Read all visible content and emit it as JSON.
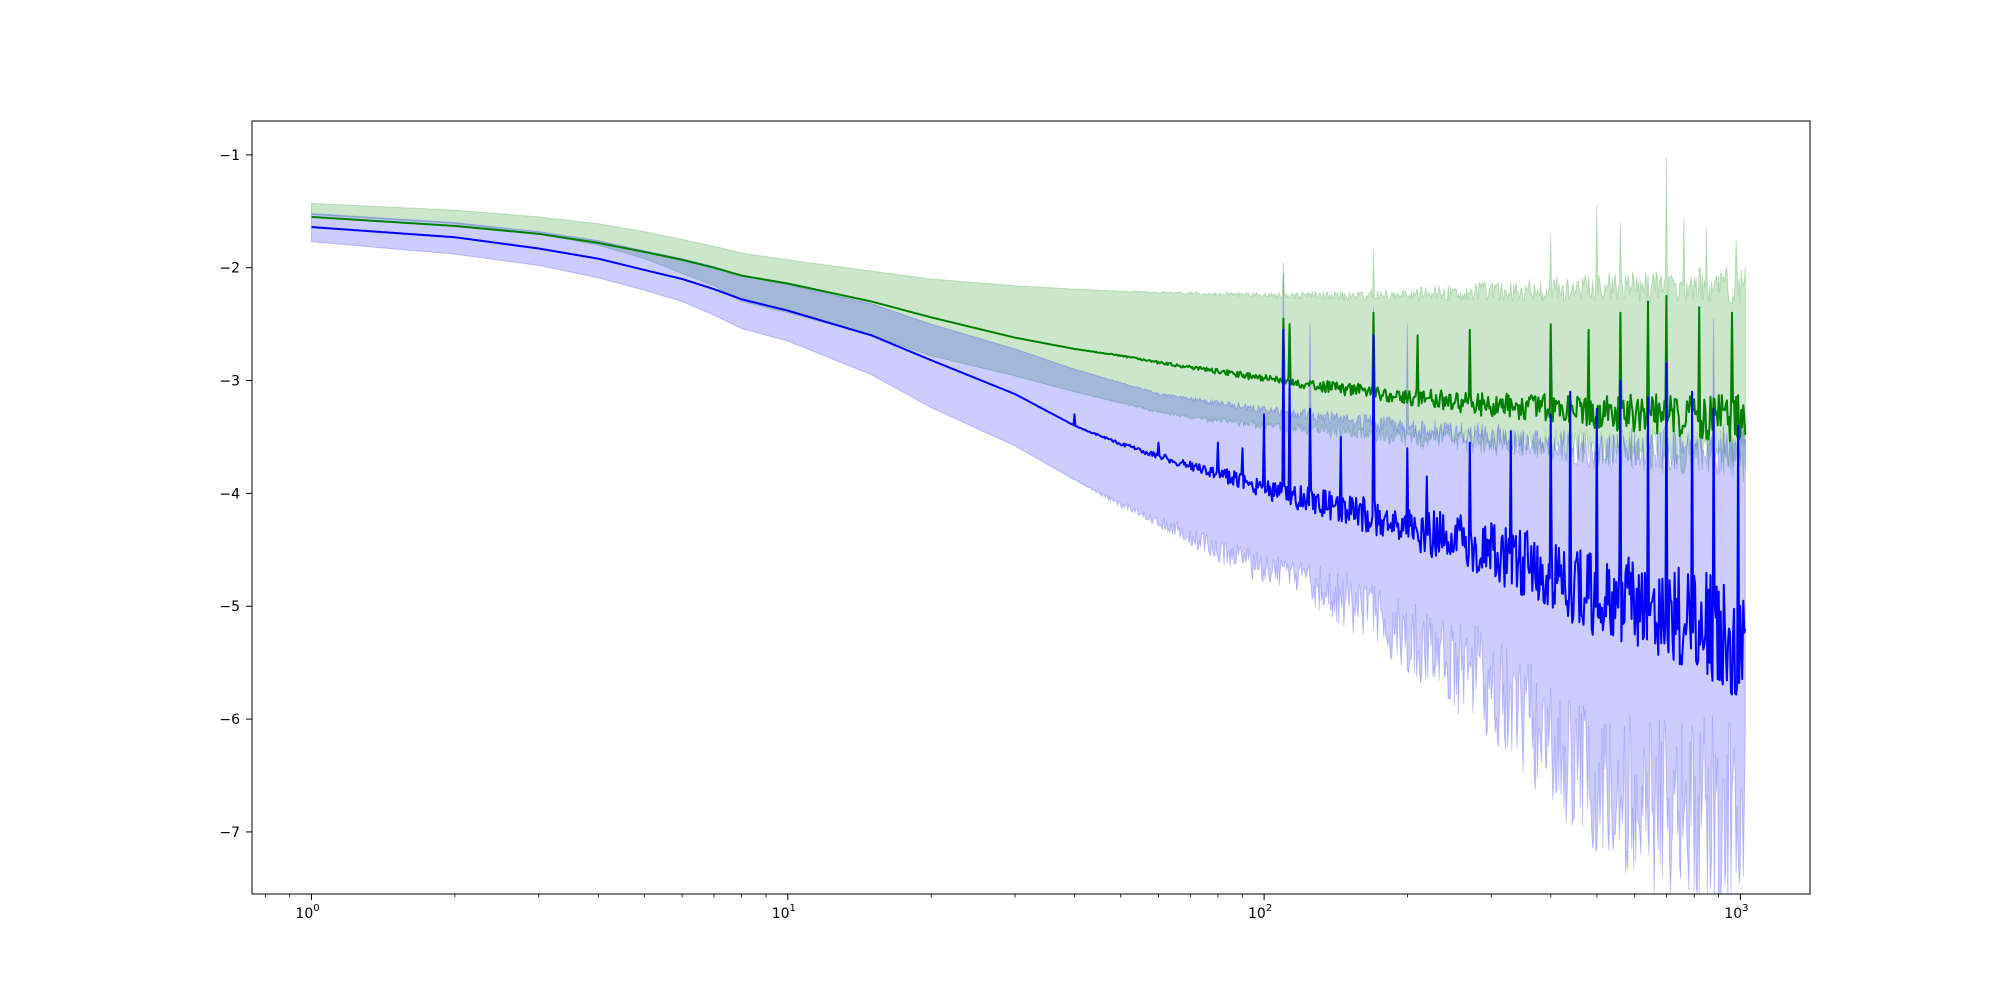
{
  "chart_data": {
    "type": "line",
    "title": "",
    "xlabel": "",
    "ylabel": "",
    "xscale": "log",
    "xlim": [
      0.75,
      1400
    ],
    "ylim": [
      -7.55,
      -0.7
    ],
    "grid": false,
    "legend": "none",
    "x_ticks": [
      {
        "base": "10",
        "exp": "0",
        "value": 1
      },
      {
        "base": "10",
        "exp": "1",
        "value": 10
      },
      {
        "base": "10",
        "exp": "2",
        "value": 100
      },
      {
        "base": "10",
        "exp": "3",
        "value": 1000
      }
    ],
    "y_ticks": [
      {
        "label": "−1",
        "value": -1
      },
      {
        "label": "−2",
        "value": -2
      },
      {
        "label": "−3",
        "value": -3
      },
      {
        "label": "−4",
        "value": -4
      },
      {
        "label": "−5",
        "value": -5
      },
      {
        "label": "−6",
        "value": -6
      },
      {
        "label": "−7",
        "value": -7
      }
    ],
    "series": [
      {
        "color": "#008000",
        "band_color": "#008000",
        "band_opacity": 0.2,
        "mean": {
          "x": [
            1,
            2,
            3,
            4,
            5,
            6,
            7,
            8,
            10,
            15,
            20,
            30,
            40,
            50,
            60,
            80,
            100,
            150,
            200,
            300,
            400,
            500,
            700,
            1024
          ],
          "y": [
            -1.55,
            -1.63,
            -1.7,
            -1.78,
            -1.86,
            -1.93,
            -2.0,
            -2.07,
            -2.14,
            -2.3,
            -2.44,
            -2.62,
            -2.72,
            -2.78,
            -2.84,
            -2.92,
            -2.98,
            -3.08,
            -3.14,
            -3.22,
            -3.25,
            -3.28,
            -3.3,
            -3.35
          ]
        },
        "upper": {
          "x": [
            1,
            2,
            3,
            4,
            5,
            6,
            7,
            8,
            10,
            15,
            20,
            30,
            40,
            50,
            60,
            80,
            100,
            150,
            200,
            300,
            400,
            500,
            700,
            1024
          ],
          "y": [
            -1.43,
            -1.49,
            -1.55,
            -1.61,
            -1.68,
            -1.75,
            -1.81,
            -1.87,
            -1.93,
            -2.03,
            -2.1,
            -2.16,
            -2.19,
            -2.21,
            -2.22,
            -2.23,
            -2.24,
            -2.25,
            -2.24,
            -2.21,
            -2.19,
            -2.17,
            -2.16,
            -2.15
          ]
        },
        "lower": {
          "x": [
            1,
            2,
            3,
            4,
            5,
            6,
            7,
            8,
            10,
            15,
            20,
            30,
            40,
            50,
            60,
            80,
            100,
            150,
            200,
            300,
            400,
            500,
            700,
            1024
          ],
          "y": [
            -1.53,
            -1.61,
            -1.7,
            -1.8,
            -1.92,
            -2.05,
            -2.16,
            -2.3,
            -2.4,
            -2.6,
            -2.78,
            -2.96,
            -3.1,
            -3.2,
            -3.28,
            -3.36,
            -3.4,
            -3.46,
            -3.5,
            -3.55,
            -3.58,
            -3.6,
            -3.62,
            -3.65
          ]
        },
        "spikes": [
          {
            "x": 110,
            "y": -2.45
          },
          {
            "x": 113,
            "y": -2.5
          },
          {
            "x": 170,
            "y": -2.4
          },
          {
            "x": 210,
            "y": -2.6
          },
          {
            "x": 270,
            "y": -2.55
          },
          {
            "x": 400,
            "y": -2.5
          },
          {
            "x": 480,
            "y": -2.55
          },
          {
            "x": 560,
            "y": -2.4
          },
          {
            "x": 640,
            "y": -2.3
          },
          {
            "x": 700,
            "y": -2.25
          },
          {
            "x": 820,
            "y": -2.35
          },
          {
            "x": 960,
            "y": -2.4
          }
        ],
        "upper_spikes": [
          {
            "x": 110,
            "y": -1.95
          },
          {
            "x": 170,
            "y": -1.85
          },
          {
            "x": 400,
            "y": -1.7
          },
          {
            "x": 500,
            "y": -1.45
          },
          {
            "x": 560,
            "y": -1.6
          },
          {
            "x": 700,
            "y": -1.02
          },
          {
            "x": 760,
            "y": -1.55
          },
          {
            "x": 850,
            "y": -1.65
          },
          {
            "x": 980,
            "y": -1.75
          }
        ]
      },
      {
        "color": "#0000ff",
        "band_color": "#0000ff",
        "band_opacity": 0.2,
        "mean": {
          "x": [
            1,
            2,
            3,
            4,
            5,
            6,
            7,
            8,
            10,
            15,
            20,
            30,
            40,
            50,
            60,
            80,
            100,
            150,
            200,
            300,
            400,
            500,
            700,
            1024
          ],
          "y": [
            -1.64,
            -1.73,
            -1.83,
            -1.92,
            -2.02,
            -2.1,
            -2.19,
            -2.28,
            -2.38,
            -2.6,
            -2.82,
            -3.12,
            -3.4,
            -3.56,
            -3.67,
            -3.82,
            -3.96,
            -4.15,
            -4.3,
            -4.5,
            -4.72,
            -4.9,
            -5.0,
            -5.3
          ]
        },
        "upper": {
          "x": [
            1,
            2,
            3,
            4,
            5,
            6,
            7,
            8,
            10,
            15,
            20,
            30,
            40,
            50,
            60,
            80,
            100,
            150,
            200,
            300,
            400,
            500,
            700,
            1024
          ],
          "y": [
            -1.52,
            -1.6,
            -1.68,
            -1.76,
            -1.85,
            -1.92,
            -1.99,
            -2.07,
            -2.15,
            -2.32,
            -2.5,
            -2.72,
            -2.9,
            -3.02,
            -3.12,
            -3.2,
            -3.26,
            -3.35,
            -3.42,
            -3.5,
            -3.56,
            -3.62,
            -3.6,
            -3.6
          ]
        },
        "lower": {
          "x": [
            1,
            2,
            3,
            4,
            5,
            6,
            7,
            8,
            10,
            15,
            20,
            30,
            40,
            50,
            60,
            80,
            100,
            150,
            200,
            300,
            400,
            500,
            700,
            1024
          ],
          "y": [
            -1.77,
            -1.88,
            -1.98,
            -2.09,
            -2.2,
            -2.3,
            -2.42,
            -2.54,
            -2.65,
            -2.95,
            -3.24,
            -3.58,
            -3.88,
            -4.1,
            -4.25,
            -4.5,
            -4.68,
            -4.95,
            -5.28,
            -5.7,
            -6.2,
            -6.6,
            -6.8,
            -6.95
          ]
        },
        "spikes": [
          {
            "x": 40,
            "y": -3.3
          },
          {
            "x": 60,
            "y": -3.55
          },
          {
            "x": 80,
            "y": -3.55
          },
          {
            "x": 90,
            "y": -3.6
          },
          {
            "x": 100,
            "y": -3.3
          },
          {
            "x": 110,
            "y": -2.55
          },
          {
            "x": 113,
            "y": -3.0
          },
          {
            "x": 125,
            "y": -3.25
          },
          {
            "x": 145,
            "y": -3.5
          },
          {
            "x": 170,
            "y": -2.6
          },
          {
            "x": 200,
            "y": -3.6
          },
          {
            "x": 220,
            "y": -3.85
          },
          {
            "x": 270,
            "y": -3.55
          },
          {
            "x": 330,
            "y": -3.45
          },
          {
            "x": 400,
            "y": -3.3
          },
          {
            "x": 440,
            "y": -3.1
          },
          {
            "x": 500,
            "y": -3.25
          },
          {
            "x": 560,
            "y": -3.0
          },
          {
            "x": 640,
            "y": -3.15
          },
          {
            "x": 700,
            "y": -2.85
          },
          {
            "x": 790,
            "y": -3.1
          },
          {
            "x": 880,
            "y": -3.25
          },
          {
            "x": 990,
            "y": -3.4
          }
        ],
        "upper_spikes": [
          {
            "x": 110,
            "y": -2.05
          },
          {
            "x": 125,
            "y": -2.5
          },
          {
            "x": 170,
            "y": -2.35
          },
          {
            "x": 200,
            "y": -2.5
          },
          {
            "x": 400,
            "y": -2.6
          },
          {
            "x": 700,
            "y": -2.3
          },
          {
            "x": 880,
            "y": -2.45
          }
        ]
      }
    ]
  }
}
